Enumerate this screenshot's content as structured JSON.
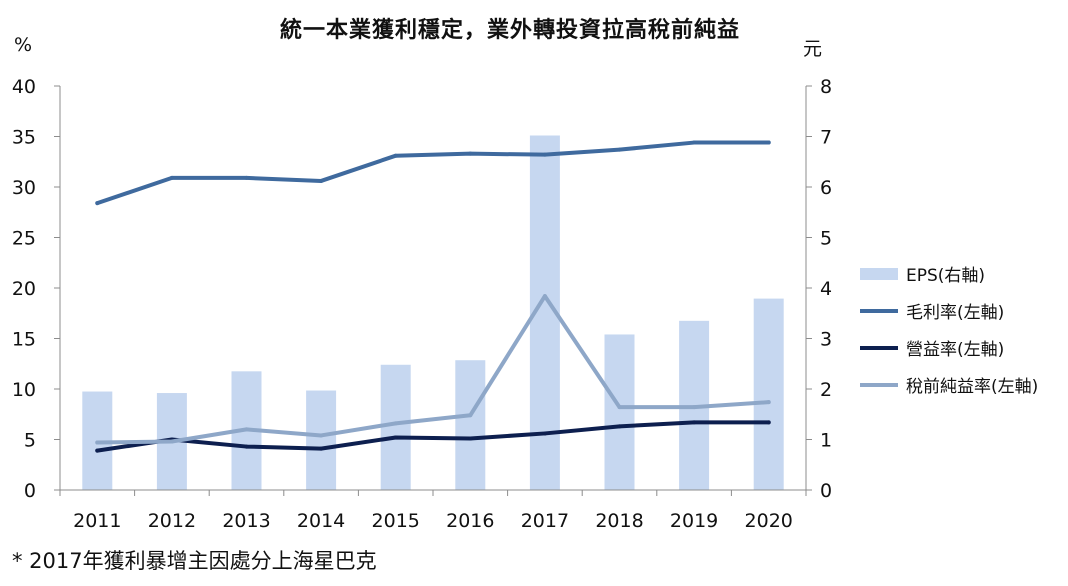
{
  "chart_data": {
    "type": "bar",
    "title": "統一本業獲利穩定，業外轉投資拉高稅前純益",
    "y_left_unit": "%",
    "y_right_unit": "元",
    "categories": [
      "2011",
      "2012",
      "2013",
      "2014",
      "2015",
      "2016",
      "2017",
      "2018",
      "2019",
      "2020"
    ],
    "ylim_left": [
      0,
      40
    ],
    "yticks_left": [
      "0",
      "5",
      "10",
      "15",
      "20",
      "25",
      "30",
      "35",
      "40"
    ],
    "ylim_right": [
      0,
      8
    ],
    "yticks_right": [
      "0",
      "1",
      "2",
      "3",
      "4",
      "5",
      "6",
      "7",
      "8"
    ],
    "series": [
      {
        "name": "EPS(右軸)",
        "type": "bar",
        "axis": "right",
        "color": "#c6d7f0",
        "values": [
          1.95,
          1.92,
          2.35,
          1.97,
          2.48,
          2.57,
          7.02,
          3.08,
          3.35,
          3.79
        ]
      },
      {
        "name": "毛利率(左軸)",
        "type": "line",
        "axis": "left",
        "color": "#3f6a9e",
        "values": [
          28.4,
          30.9,
          30.9,
          30.6,
          33.1,
          33.3,
          33.2,
          33.7,
          34.4,
          34.4
        ]
      },
      {
        "name": "營益率(左軸)",
        "type": "line",
        "axis": "left",
        "color": "#0d1f4f",
        "values": [
          3.9,
          5.0,
          4.3,
          4.1,
          5.2,
          5.1,
          5.6,
          6.3,
          6.7,
          6.7
        ]
      },
      {
        "name": "稅前純益率(左軸)",
        "type": "line",
        "axis": "left",
        "color": "#8ea7c8",
        "values": [
          4.7,
          4.8,
          6.0,
          5.4,
          6.6,
          7.4,
          19.2,
          8.2,
          8.2,
          8.7
        ]
      }
    ],
    "legend": "right",
    "grid": false
  },
  "footnote": "* 2017年獲利暴增主因處分上海星巴克"
}
